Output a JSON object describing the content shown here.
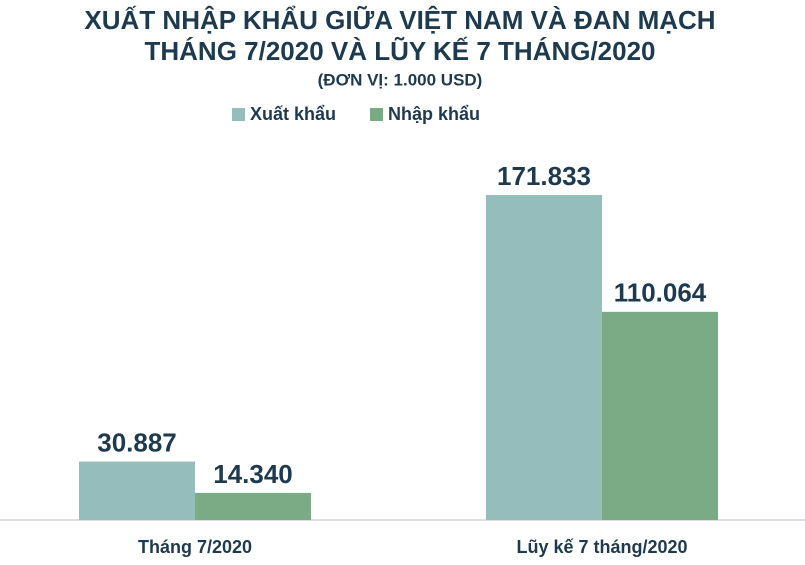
{
  "chart_data": {
    "type": "bar",
    "title": [
      "XUẤT NHẬP KHẨU GIỮA VIỆT NAM VÀ ĐAN MẠCH",
      "THÁNG 7/2020 VÀ LŨY KẾ 7 THÁNG/2020"
    ],
    "subtitle": "(ĐƠN VỊ: 1.000 USD)",
    "categories": [
      "Tháng 7/2020",
      "Lũy kế 7 tháng/2020"
    ],
    "series": [
      {
        "name": "Xuất khẩu",
        "color": "#95bdbc",
        "values": [
          30887,
          171833
        ],
        "value_labels": [
          "30.887",
          "171.833"
        ]
      },
      {
        "name": "Nhập khẩu",
        "color": "#7bab85",
        "values": [
          14340,
          110064
        ],
        "value_labels": [
          "14.340",
          "110.064"
        ]
      }
    ]
  }
}
